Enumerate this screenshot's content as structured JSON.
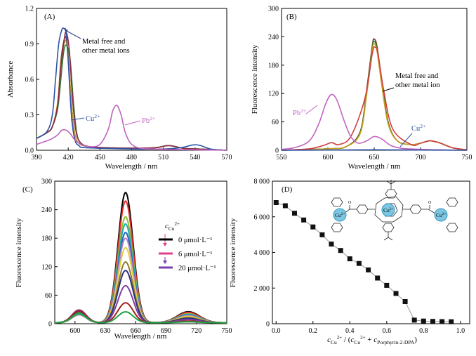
{
  "chart_data": [
    {
      "panel": "(A)",
      "type": "line",
      "xlabel": "Wavelength / nm",
      "ylabel": "Absorbance",
      "xlim": [
        390,
        570
      ],
      "ylim": [
        0,
        1.2
      ],
      "xticks": [
        "390",
        "420",
        "450",
        "480",
        "510",
        "540",
        "570"
      ],
      "yticks": [
        "0.0",
        "0.3",
        "0.6",
        "0.9",
        "1.2"
      ],
      "annotations": {
        "metal_free": [
          "Metal free and",
          "other metal ions"
        ],
        "cu_base": "Cu",
        "cu_sup": "2+",
        "pb_base": "Pb",
        "pb_sup": "2+"
      },
      "series": [
        {
          "color": "#7a2e1e",
          "x": [
            390,
            400,
            405,
            410,
            413,
            416,
            418,
            420,
            423,
            426,
            430,
            440,
            460,
            500,
            515,
            530,
            545,
            570
          ],
          "y": [
            0.1,
            0.15,
            0.2,
            0.4,
            0.75,
            0.93,
            0.95,
            0.8,
            0.4,
            0.15,
            0.06,
            0.03,
            0.02,
            0.02,
            0.04,
            0.015,
            0.01,
            0.0
          ]
        },
        {
          "color": "#c9a020",
          "x": [
            390,
            400,
            405,
            410,
            413,
            416,
            418,
            420,
            423,
            426,
            430,
            440,
            460,
            500,
            515,
            530,
            545,
            570
          ],
          "y": [
            0.1,
            0.15,
            0.2,
            0.4,
            0.72,
            0.9,
            0.92,
            0.78,
            0.4,
            0.15,
            0.06,
            0.03,
            0.02,
            0.02,
            0.04,
            0.015,
            0.01,
            0.0
          ]
        },
        {
          "color": "#2e7d32",
          "x": [
            390,
            400,
            405,
            410,
            413,
            416,
            419,
            422,
            425,
            428,
            432,
            440,
            460,
            500,
            515,
            530,
            545,
            570
          ],
          "y": [
            0.1,
            0.15,
            0.2,
            0.35,
            0.6,
            0.85,
            0.88,
            0.75,
            0.4,
            0.15,
            0.06,
            0.03,
            0.02,
            0.02,
            0.04,
            0.015,
            0.01,
            0.0
          ]
        },
        {
          "color": "#8b2a4a",
          "x": [
            390,
            400,
            405,
            410,
            413,
            416,
            418,
            421,
            424,
            427,
            431,
            440,
            460,
            500,
            515,
            530,
            545,
            570
          ],
          "y": [
            0.1,
            0.15,
            0.2,
            0.38,
            0.7,
            0.92,
            1.0,
            0.85,
            0.45,
            0.18,
            0.07,
            0.03,
            0.02,
            0.02,
            0.04,
            0.015,
            0.01,
            0.0
          ]
        },
        {
          "color": "#2d55a8",
          "x": [
            390,
            400,
            405,
            408,
            411,
            414,
            416,
            418,
            420,
            423,
            426,
            430,
            440,
            500,
            525,
            538,
            545,
            555,
            570
          ],
          "y": [
            0.1,
            0.16,
            0.3,
            0.6,
            0.9,
            1.02,
            1.03,
            1.0,
            0.75,
            0.3,
            0.1,
            0.04,
            0.02,
            0.01,
            0.02,
            0.045,
            0.04,
            0.01,
            0.0
          ]
        },
        {
          "color": "#c064c0",
          "x": [
            390,
            400,
            405,
            410,
            414,
            418,
            422,
            426,
            432,
            440,
            450,
            458,
            462,
            466,
            470,
            474,
            480,
            490,
            510,
            530,
            570
          ],
          "y": [
            0.05,
            0.08,
            0.1,
            0.13,
            0.17,
            0.17,
            0.14,
            0.09,
            0.05,
            0.03,
            0.05,
            0.18,
            0.33,
            0.38,
            0.3,
            0.15,
            0.05,
            0.015,
            0.01,
            0.005,
            0.0
          ]
        }
      ]
    },
    {
      "panel": "(B)",
      "type": "line",
      "xlabel": "Wavelength / nm",
      "ylabel": "Fluorescence intensity",
      "xlim": [
        550,
        750
      ],
      "ylim": [
        0,
        300
      ],
      "xticks": [
        "550",
        "600",
        "650",
        "700",
        "750"
      ],
      "yticks": [
        "0",
        "60",
        "120",
        "180",
        "240",
        "300"
      ],
      "annotations": {
        "metal_free": [
          "Metal free and",
          "other metal ion"
        ],
        "cu_base": "Cu",
        "cu_sup": "2+",
        "pb_base": "Pb",
        "pb_sup": "2+"
      },
      "series": [
        {
          "color": "#7a2e1e",
          "x": [
            550,
            600,
            620,
            635,
            642,
            648,
            650,
            653,
            658,
            665,
            675,
            690,
            700,
            710,
            720,
            735,
            750
          ],
          "y": [
            0,
            3,
            8,
            40,
            130,
            222,
            235,
            220,
            150,
            60,
            20,
            12,
            15,
            20,
            16,
            5,
            1
          ]
        },
        {
          "color": "#2e7d32",
          "x": [
            550,
            600,
            620,
            635,
            642,
            648,
            650,
            653,
            658,
            665,
            675,
            690,
            700,
            710,
            720,
            735,
            750
          ],
          "y": [
            0,
            3,
            8,
            38,
            125,
            218,
            230,
            215,
            145,
            58,
            20,
            12,
            15,
            20,
            16,
            5,
            1
          ]
        },
        {
          "color": "#c9a020",
          "x": [
            550,
            600,
            620,
            635,
            642,
            648,
            650,
            653,
            658,
            665,
            675,
            690,
            700,
            710,
            720,
            735,
            750
          ],
          "y": [
            0,
            3,
            8,
            36,
            120,
            212,
            225,
            210,
            140,
            56,
            20,
            12,
            15,
            20,
            16,
            5,
            1
          ]
        },
        {
          "color": "#d04040",
          "x": [
            550,
            580,
            595,
            604,
            612,
            625,
            640,
            648,
            651,
            654,
            660,
            670,
            690,
            700,
            710,
            720,
            735,
            750
          ],
          "y": [
            0,
            3,
            10,
            16,
            12,
            30,
            110,
            205,
            218,
            205,
            130,
            45,
            12,
            15,
            20,
            16,
            5,
            1
          ]
        },
        {
          "color": "#c064c0",
          "x": [
            550,
            565,
            580,
            590,
            598,
            604,
            610,
            618,
            625,
            633,
            642,
            650,
            658,
            668,
            680,
            700,
            720,
            750
          ],
          "y": [
            2,
            6,
            20,
            55,
            100,
            118,
            105,
            60,
            28,
            15,
            20,
            29,
            24,
            10,
            4,
            2,
            1,
            0
          ]
        },
        {
          "color": "#2d55a8",
          "x": [
            550,
            600,
            650,
            700,
            750
          ],
          "y": [
            0,
            0.5,
            1,
            0.5,
            0
          ]
        }
      ]
    },
    {
      "panel": "(C)",
      "type": "line",
      "xlabel": "Wavelength / nm",
      "ylabel": "Fluorescence intensity",
      "xlim": [
        580,
        750
      ],
      "ylim": [
        0,
        300
      ],
      "xticks": [
        "600",
        "630",
        "660",
        "690",
        "720",
        "750"
      ],
      "yticks": [
        "0",
        "60",
        "120",
        "180",
        "240",
        "300"
      ],
      "legend": {
        "var_base": "c",
        "var_sub": "Cu",
        "var_sup": "2+",
        "items": [
          {
            "label": "0 μmol·L⁻¹",
            "color": "#000000"
          },
          {
            "label": "6 μmol·L⁻¹",
            "color": "#e0408a"
          },
          {
            "label": "20 μmol·L⁻¹",
            "color": "#7a3fb0"
          }
        ]
      },
      "series": [
        {
          "color": "#000000",
          "peak": 274,
          "pb": 18
        },
        {
          "color": "#e03030",
          "peak": 256,
          "pb": 17
        },
        {
          "color": "#90c030",
          "peak": 223,
          "pb": 19
        },
        {
          "color": "#20b0b0",
          "peak": 208,
          "pb": 18
        },
        {
          "color": "#2060c0",
          "peak": 190,
          "pb": 20
        },
        {
          "color": "#c080c0",
          "peak": 178,
          "pb": 22
        },
        {
          "color": "#e0d040",
          "peak": 158,
          "pb": 20
        },
        {
          "color": "#8b7a30",
          "peak": 128,
          "pb": 23
        },
        {
          "color": "#303080",
          "peak": 110,
          "pb": 24
        },
        {
          "color": "#8040a0",
          "peak": 78,
          "pb": 27
        },
        {
          "color": "#a02020",
          "peak": 42,
          "pb": 25
        },
        {
          "color": "#20a040",
          "peak": 23,
          "pb": 20
        }
      ]
    },
    {
      "panel": "(D)",
      "type": "scatter",
      "xlabel_parts": {
        "c1": "c",
        "sub1": "Cu",
        "sup1": "2+",
        "mid": " / (",
        "c2": "c",
        "sub2": "Cu",
        "sup2": "2+",
        "plus": " + ",
        "c3": "c",
        "sub3": "Porphyrin-2-DPA",
        "end": ")"
      },
      "ylabel": "Fluorescence intensity",
      "xlim": [
        -0.02,
        1.05
      ],
      "ylim": [
        0,
        8000
      ],
      "xticks": [
        "0.0",
        "0.2",
        "0.4",
        "0.6",
        "0.8",
        "1.0"
      ],
      "yticks": [
        "0",
        "2 000",
        "4 000",
        "6 000",
        "8 000"
      ],
      "x": [
        0.0,
        0.05,
        0.1,
        0.15,
        0.2,
        0.25,
        0.3,
        0.35,
        0.4,
        0.45,
        0.5,
        0.55,
        0.6,
        0.65,
        0.7,
        0.75,
        0.8,
        0.85,
        0.9,
        0.95
      ],
      "y": [
        6800,
        6620,
        6200,
        5820,
        5430,
        4990,
        4470,
        4110,
        3640,
        3380,
        3020,
        2560,
        2150,
        1700,
        1240,
        200,
        150,
        130,
        120,
        110
      ],
      "structure_labels": {
        "cu_base": "Cu",
        "cu_sup": "2+",
        "o": "O"
      }
    }
  ]
}
